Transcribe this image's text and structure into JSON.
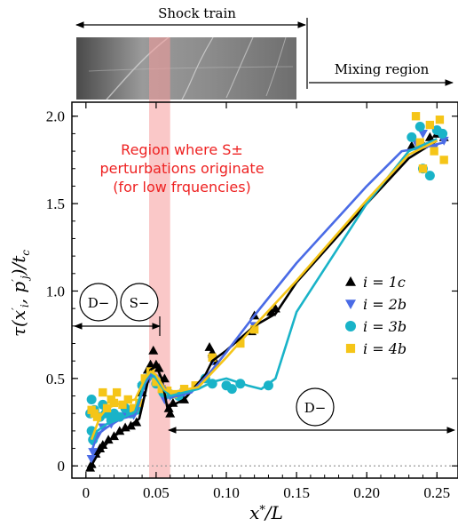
{
  "labels": {
    "shock_train": "Shock train",
    "mixing_region": "Mixing region",
    "region_line1": "Region where S±",
    "region_line2": "perturbations originate",
    "region_line3": "(for low frquencies)",
    "d_minus_left": "D−",
    "s_minus": "S−",
    "d_minus_right": "D−"
  },
  "colors": {
    "i1c": "#000000",
    "i2b": "#4a6be6",
    "i3b": "#19b3c8",
    "i4b": "#f5c518",
    "highlight": "#f59a9a",
    "region_text": "#ee2222"
  },
  "chart_data": {
    "type": "scatter",
    "xlabel": "x*/L",
    "ylabel": "τ(x′i, p′j)/tc",
    "xlim": [
      -0.01,
      0.265
    ],
    "ylim": [
      -0.07,
      2.08
    ],
    "x_ticks": [
      0,
      0.05,
      0.1,
      0.15,
      0.2,
      0.25
    ],
    "x_tick_labels": [
      "0",
      "0.05",
      "0.10",
      "0.15",
      "0.20",
      "0.25"
    ],
    "y_ticks": [
      0,
      0.5,
      1.0,
      1.5,
      2.0
    ],
    "y_tick_labels": [
      "0",
      "0.5",
      "1.0",
      "1.5",
      "2.0"
    ],
    "highlight_band": [
      0.045,
      0.06
    ],
    "zero_line": 0,
    "legend_position": "right",
    "series": [
      {
        "name": "i = 1c",
        "marker": "triangle-up",
        "color": "#000000",
        "line": [
          [
            0.003,
            -0.01
          ],
          [
            0.008,
            0.06
          ],
          [
            0.015,
            0.13
          ],
          [
            0.02,
            0.17
          ],
          [
            0.03,
            0.22
          ],
          [
            0.038,
            0.27
          ],
          [
            0.042,
            0.41
          ],
          [
            0.046,
            0.55
          ],
          [
            0.05,
            0.57
          ],
          [
            0.054,
            0.5
          ],
          [
            0.058,
            0.33
          ],
          [
            0.06,
            0.34
          ],
          [
            0.07,
            0.38
          ],
          [
            0.085,
            0.52
          ],
          [
            0.09,
            0.6
          ],
          [
            0.1,
            0.66
          ],
          [
            0.12,
            0.8
          ],
          [
            0.135,
            0.87
          ],
          [
            0.15,
            1.05
          ],
          [
            0.2,
            1.5
          ],
          [
            0.23,
            1.76
          ],
          [
            0.25,
            1.86
          ]
        ],
        "points": [
          [
            0.003,
            -0.01
          ],
          [
            0.004,
            0.01
          ],
          [
            0.007,
            0.07
          ],
          [
            0.01,
            0.1
          ],
          [
            0.012,
            0.12
          ],
          [
            0.016,
            0.15
          ],
          [
            0.02,
            0.17
          ],
          [
            0.024,
            0.2
          ],
          [
            0.028,
            0.22
          ],
          [
            0.032,
            0.23
          ],
          [
            0.036,
            0.25
          ],
          [
            0.04,
            0.42
          ],
          [
            0.044,
            0.55
          ],
          [
            0.046,
            0.58
          ],
          [
            0.048,
            0.66
          ],
          [
            0.05,
            0.58
          ],
          [
            0.052,
            0.56
          ],
          [
            0.056,
            0.5
          ],
          [
            0.059,
            0.33
          ],
          [
            0.06,
            0.3
          ],
          [
            0.062,
            0.36
          ],
          [
            0.07,
            0.38
          ],
          [
            0.088,
            0.68
          ],
          [
            0.09,
            0.65
          ],
          [
            0.092,
            0.6
          ],
          [
            0.118,
            0.77
          ],
          [
            0.12,
            0.86
          ],
          [
            0.132,
            0.88
          ],
          [
            0.135,
            0.9
          ],
          [
            0.232,
            1.83
          ],
          [
            0.24,
            1.84
          ],
          [
            0.245,
            1.88
          ],
          [
            0.25,
            1.9
          ],
          [
            0.255,
            1.88
          ]
        ]
      },
      {
        "name": "i = 2b",
        "marker": "triangle-down",
        "color": "#4a6be6",
        "line": [
          [
            0.004,
            0.08
          ],
          [
            0.008,
            0.18
          ],
          [
            0.015,
            0.22
          ],
          [
            0.025,
            0.27
          ],
          [
            0.035,
            0.29
          ],
          [
            0.042,
            0.47
          ],
          [
            0.046,
            0.52
          ],
          [
            0.05,
            0.51
          ],
          [
            0.056,
            0.45
          ],
          [
            0.06,
            0.39
          ],
          [
            0.075,
            0.42
          ],
          [
            0.09,
            0.55
          ],
          [
            0.1,
            0.65
          ],
          [
            0.12,
            0.86
          ],
          [
            0.15,
            1.16
          ],
          [
            0.2,
            1.6
          ],
          [
            0.225,
            1.8
          ],
          [
            0.24,
            1.82
          ],
          [
            0.255,
            1.85
          ]
        ],
        "points": [
          [
            0.004,
            0.04
          ],
          [
            0.005,
            0.08
          ],
          [
            0.008,
            0.17
          ],
          [
            0.012,
            0.22
          ],
          [
            0.018,
            0.24
          ],
          [
            0.022,
            0.28
          ],
          [
            0.028,
            0.3
          ],
          [
            0.034,
            0.29
          ],
          [
            0.04,
            0.45
          ],
          [
            0.045,
            0.5
          ],
          [
            0.05,
            0.5
          ],
          [
            0.056,
            0.38
          ],
          [
            0.06,
            0.4
          ],
          [
            0.07,
            0.42
          ],
          [
            0.09,
            0.6
          ],
          [
            0.12,
            0.8
          ],
          [
            0.235,
            1.85
          ],
          [
            0.24,
            1.9
          ],
          [
            0.248,
            1.82
          ],
          [
            0.255,
            1.86
          ]
        ]
      },
      {
        "name": "i = 3b",
        "marker": "circle",
        "color": "#19b3c8",
        "line": [
          [
            0.004,
            0.12
          ],
          [
            0.008,
            0.2
          ],
          [
            0.015,
            0.24
          ],
          [
            0.025,
            0.27
          ],
          [
            0.035,
            0.31
          ],
          [
            0.042,
            0.48
          ],
          [
            0.046,
            0.54
          ],
          [
            0.05,
            0.5
          ],
          [
            0.056,
            0.43
          ],
          [
            0.06,
            0.4
          ],
          [
            0.08,
            0.44
          ],
          [
            0.09,
            0.48
          ],
          [
            0.1,
            0.5
          ],
          [
            0.115,
            0.46
          ],
          [
            0.125,
            0.44
          ],
          [
            0.135,
            0.5
          ],
          [
            0.15,
            0.88
          ],
          [
            0.2,
            1.5
          ],
          [
            0.23,
            1.8
          ],
          [
            0.25,
            1.87
          ]
        ],
        "points": [
          [
            0.003,
            0.3
          ],
          [
            0.004,
            0.2
          ],
          [
            0.005,
            0.15
          ],
          [
            0.004,
            0.38
          ],
          [
            0.006,
            0.32
          ],
          [
            0.01,
            0.28
          ],
          [
            0.012,
            0.35
          ],
          [
            0.014,
            0.3
          ],
          [
            0.018,
            0.26
          ],
          [
            0.02,
            0.3
          ],
          [
            0.024,
            0.28
          ],
          [
            0.028,
            0.33
          ],
          [
            0.032,
            0.3
          ],
          [
            0.036,
            0.32
          ],
          [
            0.04,
            0.46
          ],
          [
            0.046,
            0.52
          ],
          [
            0.05,
            0.47
          ],
          [
            0.055,
            0.42
          ],
          [
            0.06,
            0.41
          ],
          [
            0.066,
            0.4
          ],
          [
            0.085,
            0.5
          ],
          [
            0.09,
            0.47
          ],
          [
            0.1,
            0.46
          ],
          [
            0.104,
            0.44
          ],
          [
            0.11,
            0.47
          ],
          [
            0.13,
            0.46
          ],
          [
            0.232,
            1.88
          ],
          [
            0.238,
            1.94
          ],
          [
            0.24,
            1.7
          ],
          [
            0.245,
            1.66
          ],
          [
            0.25,
            1.92
          ],
          [
            0.254,
            1.9
          ]
        ]
      },
      {
        "name": "i = 4b",
        "marker": "square",
        "color": "#f5c518",
        "line": [
          [
            0.004,
            0.15
          ],
          [
            0.01,
            0.28
          ],
          [
            0.015,
            0.33
          ],
          [
            0.025,
            0.36
          ],
          [
            0.035,
            0.38
          ],
          [
            0.042,
            0.5
          ],
          [
            0.046,
            0.54
          ],
          [
            0.05,
            0.52
          ],
          [
            0.056,
            0.44
          ],
          [
            0.06,
            0.42
          ],
          [
            0.08,
            0.45
          ],
          [
            0.1,
            0.62
          ],
          [
            0.12,
            0.8
          ],
          [
            0.15,
            1.06
          ],
          [
            0.2,
            1.52
          ],
          [
            0.23,
            1.78
          ],
          [
            0.25,
            1.86
          ]
        ],
        "points": [
          [
            0.004,
            0.32
          ],
          [
            0.006,
            0.3
          ],
          [
            0.008,
            0.28
          ],
          [
            0.012,
            0.42
          ],
          [
            0.015,
            0.33
          ],
          [
            0.018,
            0.38
          ],
          [
            0.02,
            0.36
          ],
          [
            0.022,
            0.42
          ],
          [
            0.026,
            0.35
          ],
          [
            0.03,
            0.38
          ],
          [
            0.034,
            0.33
          ],
          [
            0.038,
            0.36
          ],
          [
            0.042,
            0.5
          ],
          [
            0.046,
            0.54
          ],
          [
            0.05,
            0.48
          ],
          [
            0.054,
            0.44
          ],
          [
            0.058,
            0.43
          ],
          [
            0.062,
            0.41
          ],
          [
            0.07,
            0.44
          ],
          [
            0.078,
            0.46
          ],
          [
            0.09,
            0.62
          ],
          [
            0.11,
            0.7
          ],
          [
            0.12,
            0.78
          ],
          [
            0.235,
            2.0
          ],
          [
            0.238,
            1.85
          ],
          [
            0.24,
            1.7
          ],
          [
            0.245,
            1.95
          ],
          [
            0.248,
            1.8
          ],
          [
            0.252,
            1.98
          ],
          [
            0.255,
            1.75
          ]
        ]
      }
    ]
  }
}
